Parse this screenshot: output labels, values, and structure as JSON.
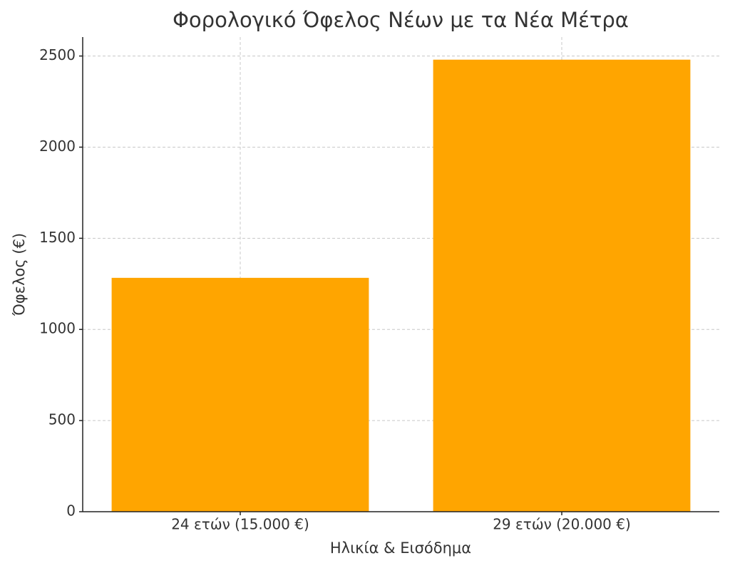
{
  "chart_data": {
    "type": "bar",
    "title": "Φορολογικό Όφελος Νέων με τα Νέα Μέτρα",
    "x_label": "Ηλικία & Εισόδημα",
    "y_label": "Όφελος (€)",
    "categories": [
      "24 ετών (15.000 €)",
      "29 ετών (20.000 €)"
    ],
    "values": [
      1283,
      2480
    ],
    "color": "#ffa500",
    "ylim": [
      0,
      2604
    ],
    "yticks": [
      0,
      500,
      1000,
      1500,
      2000,
      2500
    ],
    "grid": true
  }
}
